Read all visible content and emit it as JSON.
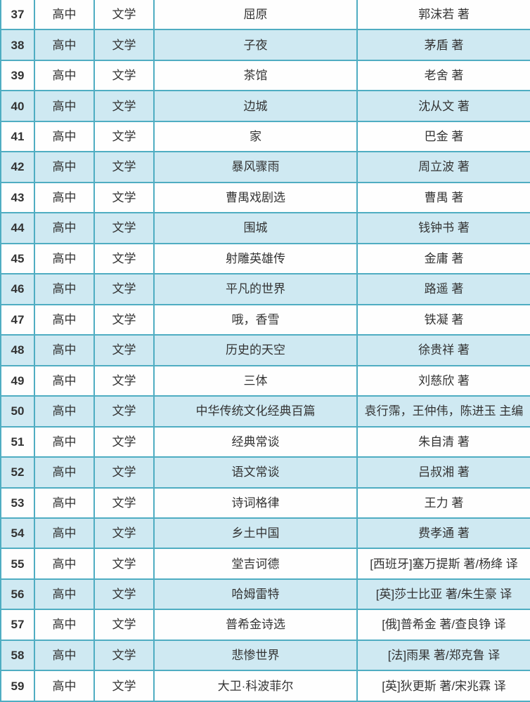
{
  "page": {
    "kind": "reading-list-table-segment",
    "visible_row_range": "37-59"
  },
  "style": {
    "border_color": "#4fadc2",
    "row_white": "#fefefe",
    "row_blue": "#cfe9f2",
    "text_color": "#333333"
  },
  "table": {
    "rows": [
      {
        "no": "37",
        "level": "高中",
        "category": "文学",
        "title": "屈原",
        "author": "郭沫若 著"
      },
      {
        "no": "38",
        "level": "高中",
        "category": "文学",
        "title": "子夜",
        "author": "茅盾 著"
      },
      {
        "no": "39",
        "level": "高中",
        "category": "文学",
        "title": "茶馆",
        "author": "老舍 著"
      },
      {
        "no": "40",
        "level": "高中",
        "category": "文学",
        "title": "边城",
        "author": "沈从文 著"
      },
      {
        "no": "41",
        "level": "高中",
        "category": "文学",
        "title": "家",
        "author": "巴金 著"
      },
      {
        "no": "42",
        "level": "高中",
        "category": "文学",
        "title": "暴风骤雨",
        "author": "周立波 著"
      },
      {
        "no": "43",
        "level": "高中",
        "category": "文学",
        "title": "曹禺戏剧选",
        "author": "曹禺 著"
      },
      {
        "no": "44",
        "level": "高中",
        "category": "文学",
        "title": "围城",
        "author": "钱钟书 著"
      },
      {
        "no": "45",
        "level": "高中",
        "category": "文学",
        "title": "射雕英雄传",
        "author": "金庸 著"
      },
      {
        "no": "46",
        "level": "高中",
        "category": "文学",
        "title": "平凡的世界",
        "author": "路遥 著"
      },
      {
        "no": "47",
        "level": "高中",
        "category": "文学",
        "title": "哦，香雪",
        "author": "铁凝 著"
      },
      {
        "no": "48",
        "level": "高中",
        "category": "文学",
        "title": "历史的天空",
        "author": "徐贵祥 著"
      },
      {
        "no": "49",
        "level": "高中",
        "category": "文学",
        "title": "三体",
        "author": "刘慈欣 著"
      },
      {
        "no": "50",
        "level": "高中",
        "category": "文学",
        "title": "中华传统文化经典百篇",
        "author": "袁行霈，王仲伟，陈进玉 主编"
      },
      {
        "no": "51",
        "level": "高中",
        "category": "文学",
        "title": "经典常谈",
        "author": "朱自清 著"
      },
      {
        "no": "52",
        "level": "高中",
        "category": "文学",
        "title": "语文常谈",
        "author": "吕叔湘 著"
      },
      {
        "no": "53",
        "level": "高中",
        "category": "文学",
        "title": "诗词格律",
        "author": "王力 著"
      },
      {
        "no": "54",
        "level": "高中",
        "category": "文学",
        "title": "乡土中国",
        "author": "费孝通 著"
      },
      {
        "no": "55",
        "level": "高中",
        "category": "文学",
        "title": "堂吉诃德",
        "author": "[西班牙]塞万提斯 著/杨绛 译"
      },
      {
        "no": "56",
        "level": "高中",
        "category": "文学",
        "title": "哈姆雷特",
        "author": "[英]莎士比亚 著/朱生豪 译"
      },
      {
        "no": "57",
        "level": "高中",
        "category": "文学",
        "title": "普希金诗选",
        "author": "[俄]普希金 著/查良铮 译"
      },
      {
        "no": "58",
        "level": "高中",
        "category": "文学",
        "title": "悲惨世界",
        "author": "[法]雨果 著/郑克鲁 译"
      },
      {
        "no": "59",
        "level": "高中",
        "category": "文学",
        "title": "大卫·科波菲尔",
        "author": "[英]狄更斯 著/宋兆霖 译"
      }
    ]
  }
}
